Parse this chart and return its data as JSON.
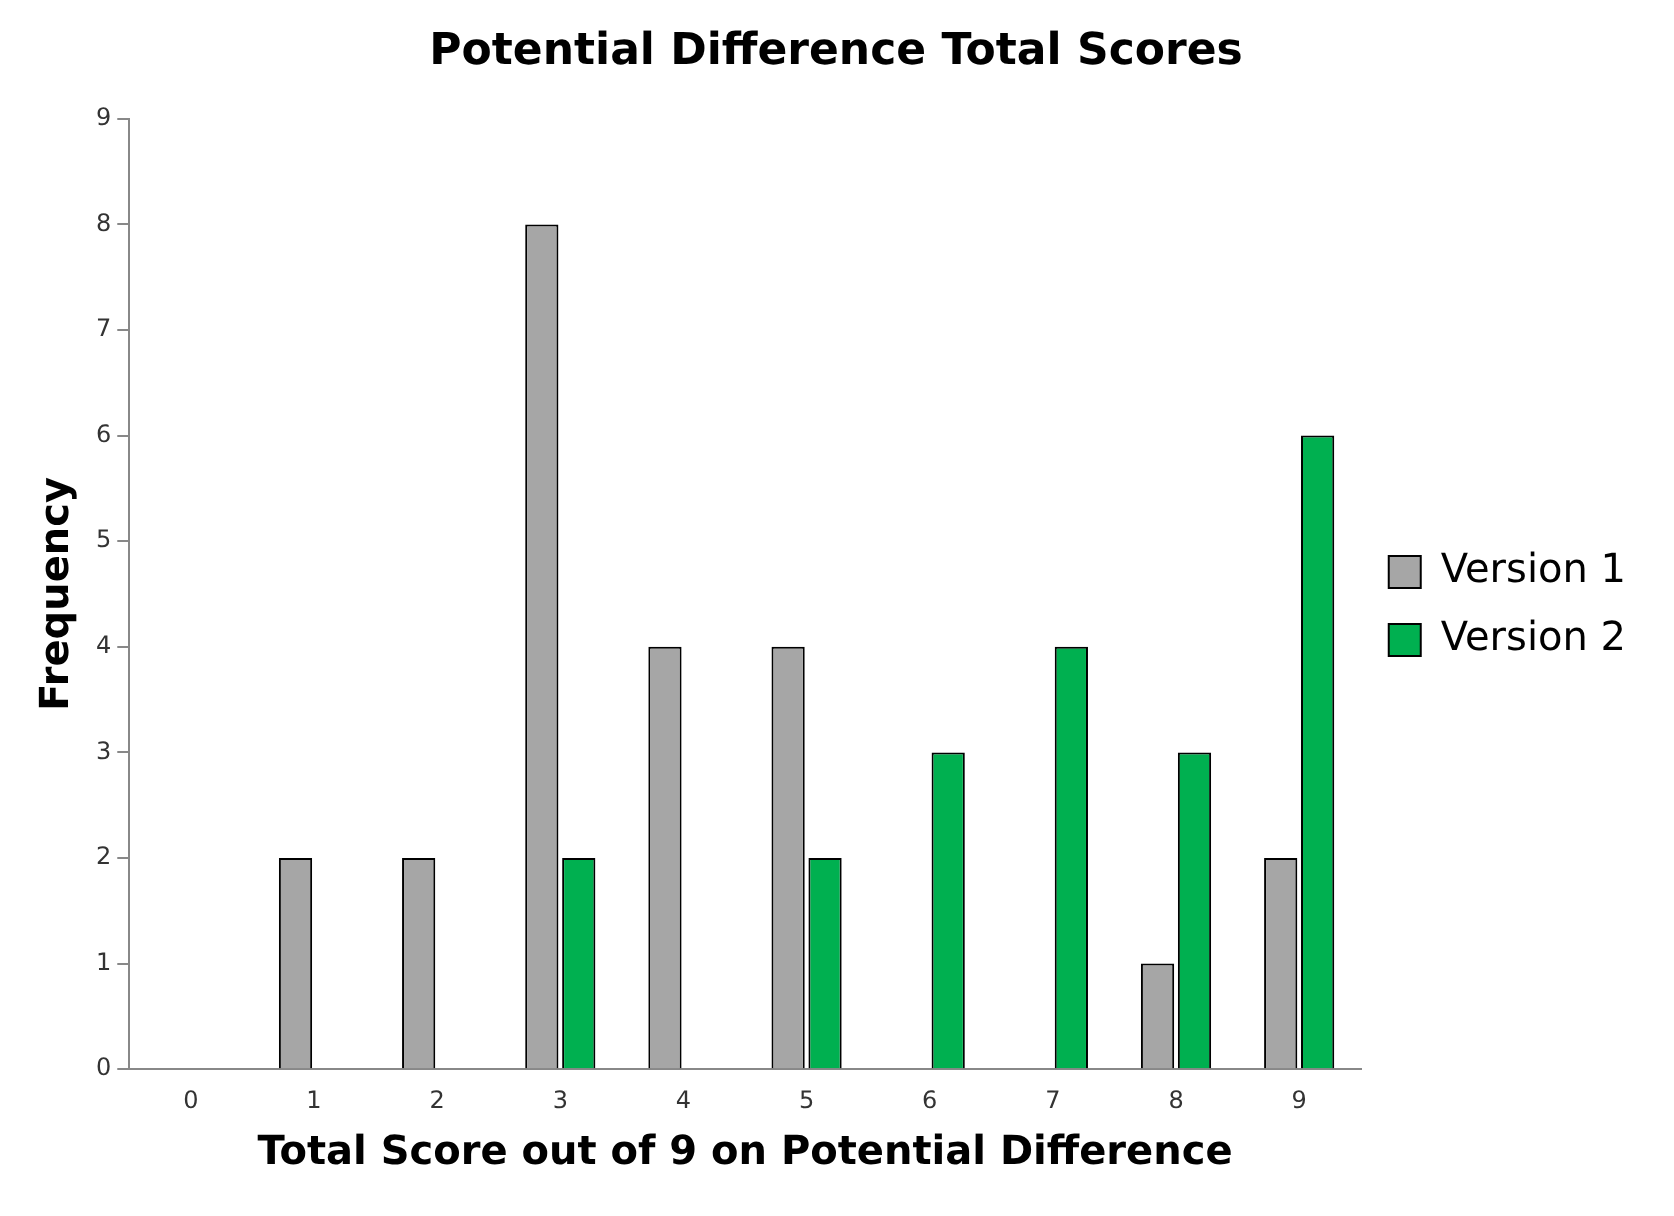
{
  "chart_data": {
    "type": "bar",
    "title": "Potential Difference Total Scores",
    "xlabel": "Total Score out of 9 on Potential Difference",
    "ylabel": "Frequency",
    "categories": [
      "0",
      "1",
      "2",
      "3",
      "4",
      "5",
      "6",
      "7",
      "8",
      "9"
    ],
    "series": [
      {
        "name": "Version 1",
        "color": "#a6a6a6",
        "values": [
          0,
          2,
          2,
          8,
          4,
          4,
          0,
          0,
          1,
          2
        ]
      },
      {
        "name": "Version 2",
        "color": "#00b050",
        "values": [
          0,
          0,
          0,
          2,
          0,
          2,
          3,
          4,
          3,
          6
        ]
      }
    ],
    "ylim": [
      0,
      9
    ],
    "yticks": [
      0,
      1,
      2,
      3,
      4,
      5,
      6,
      7,
      8,
      9
    ],
    "grid": false,
    "legend": "right"
  }
}
